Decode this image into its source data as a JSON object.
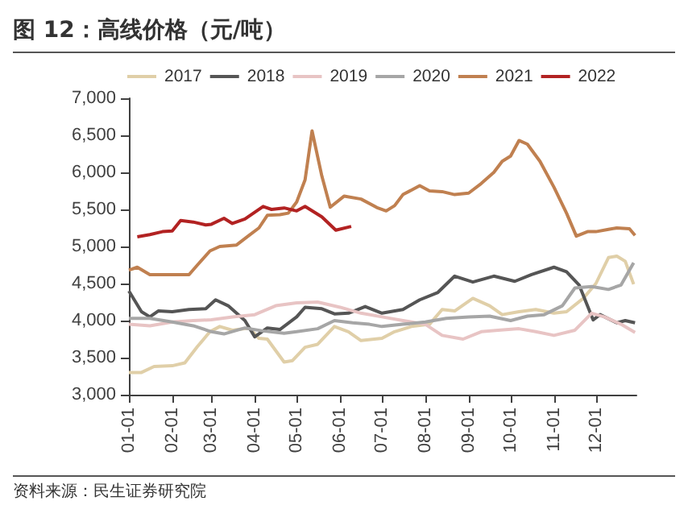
{
  "chart_data": {
    "type": "line",
    "title": "图 12：高线价格（元/吨）",
    "annotations": [
      "资料来源：民生证券研究院"
    ],
    "legend": "top",
    "grid": false,
    "marker": "none",
    "line_style": "solid",
    "xlim": [
      "--01-01",
      "--12-30"
    ],
    "xticks": [
      {
        "value": "--01-01",
        "label": "01-01"
      },
      {
        "value": "--02-01",
        "label": "02-01"
      },
      {
        "value": "--03-01",
        "label": "03-01"
      },
      {
        "value": "--04-01",
        "label": "04-01"
      },
      {
        "value": "--05-01",
        "label": "05-01"
      },
      {
        "value": "--06-01",
        "label": "06-01"
      },
      {
        "value": "--07-01",
        "label": "07-01"
      },
      {
        "value": "--08-01",
        "label": "08-01"
      },
      {
        "value": "--09-01",
        "label": "09-01"
      },
      {
        "value": "--10-01",
        "label": "10-01"
      },
      {
        "value": "--11-01",
        "label": "11-01"
      },
      {
        "value": "--12-01",
        "label": "12-01"
      }
    ],
    "ylim": [
      3000,
      7000
    ],
    "yticks": [
      {
        "value": 3000,
        "label": "3,000"
      },
      {
        "value": 3500,
        "label": "3,500"
      },
      {
        "value": 4000,
        "label": "4,000"
      },
      {
        "value": 4500,
        "label": "4,500"
      },
      {
        "value": 5000,
        "label": "5,000"
      },
      {
        "value": 5500,
        "label": "5,500"
      },
      {
        "value": 6000,
        "label": "6,000"
      },
      {
        "value": 6500,
        "label": "6,500"
      },
      {
        "value": 7000,
        "label": "7,000"
      }
    ],
    "series": [
      {
        "name": "2017",
        "color": "#e0cfa8",
        "x": [
          "--01-01",
          "--01-10",
          "--01-19",
          "--02-01",
          "--02-10",
          "--02-19",
          "--02-28",
          "--03-07",
          "--03-16",
          "--03-28",
          "--04-04",
          "--04-10",
          "--04-22",
          "--04-28",
          "--05-07",
          "--05-16",
          "--05-28",
          "--06-07",
          "--06-16",
          "--07-01",
          "--07-10",
          "--07-22",
          "--08-04",
          "--08-13",
          "--08-22",
          "--09-04",
          "--09-16",
          "--09-25",
          "--10-07",
          "--10-19",
          "--11-01",
          "--11-10",
          "--11-22",
          "--12-01",
          "--12-10",
          "--12-16",
          "--12-22",
          "--12-28"
        ],
        "values": [
          3300,
          3300,
          3380,
          3390,
          3430,
          3650,
          3850,
          3920,
          3870,
          3900,
          3760,
          3750,
          3440,
          3460,
          3640,
          3680,
          3920,
          3850,
          3730,
          3760,
          3850,
          3920,
          3950,
          4150,
          4130,
          4300,
          4200,
          4080,
          4120,
          4150,
          4100,
          4120,
          4300,
          4500,
          4850,
          4870,
          4800,
          4490
        ]
      },
      {
        "name": "2018",
        "color": "#555555",
        "x": [
          "--01-01",
          "--01-10",
          "--01-16",
          "--01-22",
          "--02-01",
          "--02-13",
          "--02-25",
          "--03-04",
          "--03-13",
          "--03-25",
          "--04-01",
          "--04-10",
          "--04-19",
          "--05-01",
          "--05-07",
          "--05-19",
          "--05-28",
          "--06-07",
          "--06-19",
          "--07-01",
          "--07-16",
          "--07-28",
          "--08-10",
          "--08-22",
          "--09-04",
          "--09-19",
          "--10-04",
          "--10-16",
          "--11-01",
          "--11-10",
          "--11-19",
          "--11-29",
          "--12-04",
          "--12-16",
          "--12-22",
          "--12-29"
        ],
        "values": [
          4400,
          4120,
          4050,
          4130,
          4120,
          4150,
          4160,
          4280,
          4200,
          4000,
          3780,
          3900,
          3880,
          4050,
          4180,
          4160,
          4090,
          4100,
          4190,
          4100,
          4150,
          4280,
          4380,
          4600,
          4520,
          4600,
          4530,
          4620,
          4720,
          4660,
          4480,
          4010,
          4080,
          3970,
          4000,
          3970
        ]
      },
      {
        "name": "2019",
        "color": "#e8c4c4",
        "x": [
          "--01-01",
          "--01-16",
          "--02-01",
          "--02-16",
          "--03-01",
          "--03-16",
          "--04-01",
          "--04-16",
          "--05-01",
          "--05-16",
          "--06-01",
          "--06-16",
          "--07-01",
          "--07-16",
          "--08-01",
          "--08-13",
          "--08-28",
          "--09-10",
          "--09-22",
          "--10-07",
          "--10-19",
          "--11-01",
          "--11-16",
          "--11-28",
          "--12-07",
          "--12-19",
          "--12-29"
        ],
        "values": [
          3950,
          3930,
          3980,
          4000,
          4010,
          4050,
          4080,
          4200,
          4240,
          4250,
          4180,
          4100,
          4050,
          4000,
          3950,
          3800,
          3750,
          3850,
          3870,
          3890,
          3850,
          3800,
          3870,
          4100,
          4050,
          3950,
          3840
        ]
      },
      {
        "name": "2020",
        "color": "#a6a6a6",
        "x": [
          "--01-01",
          "--01-16",
          "--02-01",
          "--02-16",
          "--03-01",
          "--03-10",
          "--03-25",
          "--04-07",
          "--04-22",
          "--05-01",
          "--05-16",
          "--05-28",
          "--06-10",
          "--06-22",
          "--07-01",
          "--07-16",
          "--08-01",
          "--08-16",
          "--09-01",
          "--09-16",
          "--10-01",
          "--10-13",
          "--10-25",
          "--11-07",
          "--11-16",
          "--11-28",
          "--12-10",
          "--12-19",
          "--12-28"
        ],
        "values": [
          4030,
          4030,
          3980,
          3930,
          3850,
          3820,
          3900,
          3860,
          3830,
          3850,
          3890,
          4000,
          3970,
          3950,
          3920,
          3950,
          3980,
          4030,
          4050,
          4060,
          4000,
          4060,
          4080,
          4200,
          4440,
          4460,
          4420,
          4480,
          4780
        ]
      },
      {
        "name": "2021",
        "color": "#c08050",
        "x": [
          "--01-01",
          "--01-07",
          "--01-16",
          "--02-01",
          "--02-13",
          "--02-19",
          "--02-28",
          "--03-07",
          "--03-19",
          "--03-28",
          "--04-04",
          "--04-10",
          "--04-19",
          "--04-25",
          "--05-01",
          "--05-07",
          "--05-12",
          "--05-19",
          "--05-25",
          "--06-04",
          "--06-16",
          "--06-28",
          "--07-04",
          "--07-10",
          "--07-16",
          "--07-28",
          "--08-04",
          "--08-13",
          "--08-22",
          "--09-01",
          "--09-10",
          "--09-19",
          "--09-25",
          "--10-01",
          "--10-07",
          "--10-13",
          "--10-22",
          "--11-01",
          "--11-10",
          "--11-17",
          "--11-25",
          "--12-01",
          "--12-10",
          "--12-16",
          "--12-25",
          "--12-29"
        ],
        "values": [
          4680,
          4720,
          4620,
          4620,
          4620,
          4750,
          4940,
          5000,
          5020,
          5150,
          5250,
          5420,
          5430,
          5450,
          5600,
          5900,
          6560,
          5950,
          5530,
          5680,
          5640,
          5520,
          5480,
          5550,
          5700,
          5820,
          5750,
          5740,
          5700,
          5720,
          5850,
          6000,
          6150,
          6220,
          6430,
          6380,
          6150,
          5800,
          5450,
          5140,
          5200,
          5200,
          5230,
          5250,
          5240,
          5150
        ]
      },
      {
        "name": "2022",
        "color": "#b22222",
        "x": [
          "--01-07",
          "--01-16",
          "--01-25",
          "--02-01",
          "--02-07",
          "--02-16",
          "--02-25",
          "--03-01",
          "--03-10",
          "--03-16",
          "--03-25",
          "--04-07",
          "--04-13",
          "--04-22",
          "--05-01",
          "--05-07",
          "--05-19",
          "--05-29",
          "--06-09"
        ],
        "values": [
          5130,
          5160,
          5200,
          5210,
          5350,
          5330,
          5290,
          5300,
          5380,
          5310,
          5370,
          5540,
          5500,
          5520,
          5480,
          5540,
          5400,
          5220,
          5270
        ]
      }
    ]
  }
}
